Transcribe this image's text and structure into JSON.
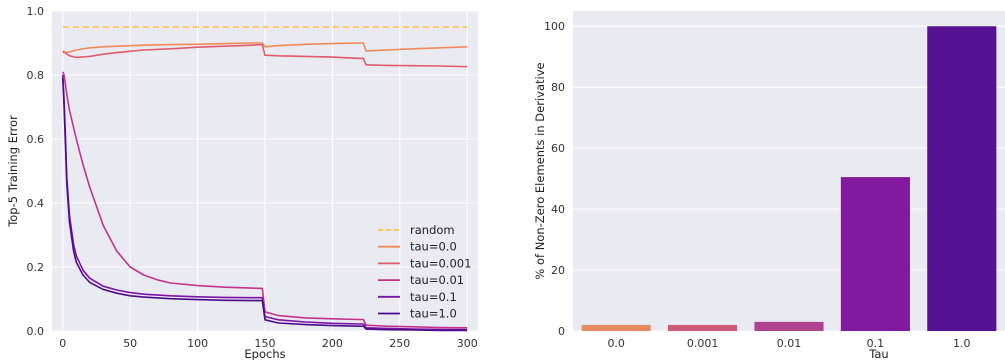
{
  "chart_data": [
    {
      "type": "line",
      "xlabel": "Epochs",
      "ylabel": "Top-5 Training Error",
      "xlim": [
        -8,
        308
      ],
      "ylim": [
        0.0,
        1.0
      ],
      "xticks": [
        "0",
        "50",
        "100",
        "150",
        "200",
        "250",
        "300"
      ],
      "yticks": [
        "0.0",
        "0.2",
        "0.4",
        "0.6",
        "0.8",
        "1.0"
      ],
      "grid": true,
      "legend_position": "lower-right",
      "series": [
        {
          "name": "random",
          "style": "dashed",
          "color": "#fdbf3c",
          "x": [
            0,
            300
          ],
          "y": [
            0.95,
            0.95
          ]
        },
        {
          "name": "tau=0.0",
          "color": "#f08a57",
          "x": [
            0,
            5,
            10,
            20,
            30,
            40,
            60,
            80,
            100,
            120,
            140,
            148,
            150,
            160,
            180,
            200,
            220,
            223,
            225,
            240,
            260,
            280,
            300
          ],
          "y": [
            0.87,
            0.872,
            0.878,
            0.885,
            0.888,
            0.89,
            0.893,
            0.895,
            0.896,
            0.898,
            0.9,
            0.9,
            0.888,
            0.892,
            0.896,
            0.898,
            0.9,
            0.9,
            0.875,
            0.878,
            0.882,
            0.885,
            0.888
          ]
        },
        {
          "name": "tau=0.001",
          "color": "#e05c6c",
          "x": [
            0,
            5,
            10,
            20,
            30,
            40,
            60,
            80,
            100,
            120,
            140,
            148,
            150,
            160,
            180,
            200,
            220,
            223,
            225,
            240,
            260,
            280,
            300
          ],
          "y": [
            0.875,
            0.86,
            0.855,
            0.858,
            0.865,
            0.87,
            0.878,
            0.882,
            0.887,
            0.89,
            0.893,
            0.895,
            0.862,
            0.86,
            0.858,
            0.856,
            0.852,
            0.852,
            0.832,
            0.83,
            0.829,
            0.828,
            0.826
          ]
        },
        {
          "name": "tau=0.01",
          "color": "#c2348c",
          "x": [
            0,
            1,
            3,
            5,
            10,
            15,
            20,
            30,
            40,
            50,
            60,
            70,
            80,
            100,
            120,
            140,
            148,
            150,
            160,
            180,
            200,
            220,
            223,
            225,
            240,
            260,
            280,
            300
          ],
          "y": [
            0.81,
            0.8,
            0.74,
            0.69,
            0.6,
            0.52,
            0.45,
            0.33,
            0.25,
            0.2,
            0.175,
            0.16,
            0.15,
            0.142,
            0.137,
            0.134,
            0.133,
            0.06,
            0.048,
            0.041,
            0.038,
            0.036,
            0.036,
            0.018,
            0.015,
            0.013,
            0.011,
            0.01
          ]
        },
        {
          "name": "tau=0.1",
          "color": "#7e12a6",
          "x": [
            0,
            1,
            2,
            3,
            5,
            8,
            10,
            15,
            20,
            30,
            40,
            50,
            60,
            80,
            100,
            120,
            140,
            148,
            150,
            160,
            180,
            200,
            220,
            223,
            225,
            240,
            260,
            280,
            300
          ],
          "y": [
            0.8,
            0.72,
            0.6,
            0.48,
            0.36,
            0.27,
            0.235,
            0.19,
            0.165,
            0.14,
            0.128,
            0.12,
            0.115,
            0.11,
            0.107,
            0.105,
            0.104,
            0.104,
            0.045,
            0.035,
            0.028,
            0.024,
            0.022,
            0.022,
            0.01,
            0.008,
            0.006,
            0.005,
            0.004
          ]
        },
        {
          "name": "tau=1.0",
          "color": "#4b0c8b",
          "x": [
            0,
            1,
            2,
            3,
            5,
            8,
            10,
            15,
            20,
            30,
            40,
            50,
            60,
            80,
            100,
            120,
            140,
            148,
            150,
            160,
            180,
            200,
            220,
            223,
            225,
            240,
            260,
            280,
            300
          ],
          "y": [
            0.79,
            0.7,
            0.58,
            0.46,
            0.34,
            0.25,
            0.215,
            0.175,
            0.152,
            0.13,
            0.118,
            0.11,
            0.106,
            0.101,
            0.098,
            0.096,
            0.095,
            0.095,
            0.035,
            0.025,
            0.02,
            0.017,
            0.015,
            0.015,
            0.006,
            0.004,
            0.003,
            0.002,
            0.002
          ]
        }
      ]
    },
    {
      "type": "bar",
      "xlabel": "Tau",
      "ylabel": "% of Non-Zero Elements in Derivative",
      "categories": [
        "0.0",
        "0.001",
        "0.01",
        "0.1",
        "1.0"
      ],
      "values": [
        2,
        2,
        3,
        50.5,
        100
      ],
      "colors": [
        "#e58a5f",
        "#cf5a77",
        "#b04390",
        "#83199f",
        "#561292"
      ],
      "ylim": [
        0,
        105
      ],
      "yticks": [
        "0",
        "20",
        "40",
        "60",
        "80",
        "100"
      ],
      "grid": true
    }
  ]
}
